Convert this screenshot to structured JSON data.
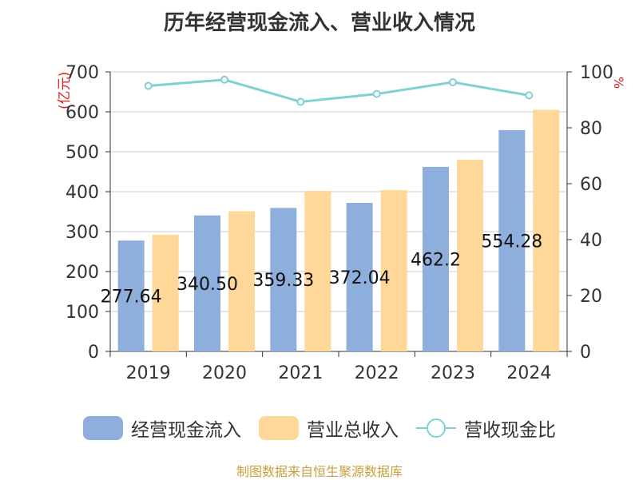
{
  "title": "历年经营现金流入、营业收入情况",
  "unit_left": "(亿元)",
  "unit_right": "%",
  "source": "制图数据来自恒生聚源数据库",
  "colors": {
    "cash": "#8eaedb",
    "revenue": "#ffd899",
    "ratio": "#7fd1d3",
    "grid": "#cccccc",
    "axis": "#333333",
    "unit": "#e02020"
  },
  "chart_data": {
    "type": "bar",
    "title": "历年经营现金流入、营业收入情况",
    "categories": [
      "2019",
      "2020",
      "2021",
      "2022",
      "2023",
      "2024"
    ],
    "series": [
      {
        "name": "经营现金流入",
        "type": "bar",
        "axis": "left",
        "values": [
          277.64,
          340.5,
          359.33,
          372.04,
          462.2,
          554.28
        ],
        "labels": [
          "277.64",
          "340.50",
          "359.33",
          "372.04",
          "462.2",
          "554.28"
        ]
      },
      {
        "name": "营业总收入",
        "type": "bar",
        "axis": "left",
        "values": [
          292,
          351,
          402,
          404,
          480,
          605
        ]
      },
      {
        "name": "营收现金比",
        "type": "line",
        "axis": "right",
        "values": [
          95,
          97.2,
          89.3,
          92.1,
          96.3,
          91.6
        ]
      }
    ],
    "y_left": {
      "min": 0,
      "max": 700,
      "ticks": [
        0,
        100,
        200,
        300,
        400,
        500,
        600,
        700
      ],
      "unit": "(亿元)"
    },
    "y_right": {
      "min": 0,
      "max": 100,
      "ticks": [
        0,
        20,
        40,
        60,
        80,
        100
      ],
      "unit": "%"
    },
    "grid": true,
    "legend_position": "bottom"
  }
}
